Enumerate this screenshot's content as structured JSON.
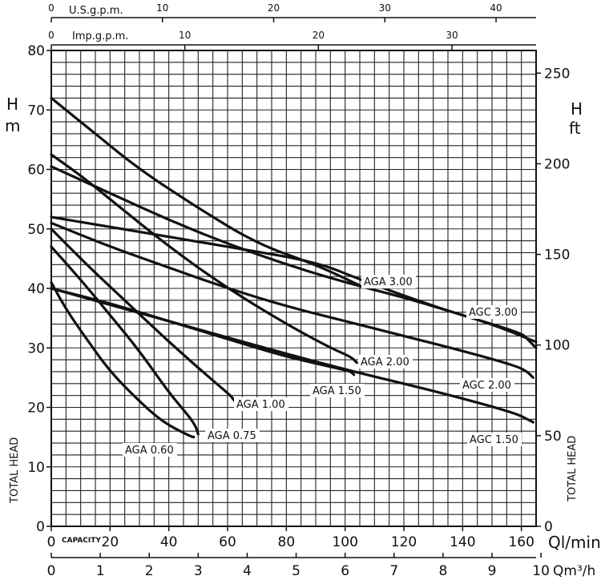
{
  "chart_data": {
    "type": "line",
    "title": "",
    "axes": {
      "left": {
        "symbol": "H",
        "unit": "m",
        "name": "TOTAL HEAD",
        "range": [
          0,
          80
        ],
        "ticks": [
          "0",
          "10",
          "20",
          "30",
          "40",
          "50",
          "60",
          "70",
          "80"
        ]
      },
      "right": {
        "symbol": "H",
        "unit": "ft",
        "name": "TOTAL HEAD",
        "range": [
          0,
          262.5
        ],
        "ticks": [
          "0",
          "50",
          "100",
          "150",
          "200",
          "250"
        ]
      },
      "bottom_flow": {
        "unit": "Ql/min",
        "name": "CAPACITY",
        "range": [
          0,
          165
        ],
        "ticks": [
          "0",
          "20",
          "40",
          "60",
          "80",
          "100",
          "120",
          "140",
          "160"
        ]
      },
      "bottom_m3h": {
        "unit": "Qm³/h",
        "range": [
          0,
          9.9
        ],
        "ticks": [
          "0",
          "1",
          "2",
          "3",
          "4",
          "5",
          "6",
          "7",
          "8",
          "9",
          "10"
        ]
      },
      "top_usgpm": {
        "unit": "U.S.g.p.m.",
        "range": [
          0,
          43.6
        ],
        "ticks": [
          "0",
          "10",
          "20",
          "30",
          "40"
        ]
      },
      "top_impgpm": {
        "unit": "Imp.g.p.m.",
        "range": [
          0,
          36.3
        ],
        "ticks": [
          "0",
          "10",
          "20",
          "30"
        ]
      }
    },
    "x_unit": "l/min",
    "y_unit": "m",
    "grid": true,
    "series": [
      {
        "name": "AGA 0.60",
        "x": [
          0,
          5,
          12,
          20,
          30,
          38,
          47,
          48.5
        ],
        "y": [
          41,
          36.5,
          31.5,
          26,
          21,
          17.5,
          15.2,
          15
        ]
      },
      {
        "name": "AGA 0.75",
        "x": [
          0,
          10,
          20,
          30,
          40,
          46,
          49,
          50
        ],
        "y": [
          47,
          41.5,
          35.5,
          29.5,
          22.5,
          19,
          17,
          15.5
        ]
      },
      {
        "name": "AGA 1.00",
        "x": [
          0,
          12,
          25,
          40,
          55,
          61,
          62.5
        ],
        "y": [
          50,
          44,
          38,
          31,
          24.5,
          22,
          21
        ]
      },
      {
        "name": "AGA 1.50",
        "x": [
          0,
          20,
          40,
          60,
          80,
          98,
          102,
          103
        ],
        "y": [
          40,
          37.5,
          34.5,
          31.5,
          28.5,
          26.5,
          26,
          25.5
        ]
      },
      {
        "name": "AGA 2.00",
        "x": [
          0,
          10,
          20,
          40,
          60,
          80,
          95,
          102,
          104
        ],
        "y": [
          62.5,
          59,
          55,
          47,
          40,
          34,
          30,
          28.5,
          27.5
        ]
      },
      {
        "name": "AGA 3.00",
        "x": [
          0,
          15,
          30,
          50,
          70,
          90,
          105
        ],
        "y": [
          72,
          66,
          60,
          53.5,
          47.5,
          44,
          40.5
        ]
      },
      {
        "name": "AGC 1.50",
        "x": [
          0,
          40,
          80,
          103,
          120,
          140,
          158,
          162,
          164
        ],
        "y": [
          40,
          34.5,
          29,
          26,
          24,
          21.5,
          19,
          18,
          17.5
        ]
      },
      {
        "name": "AGC 2.00",
        "x": [
          0,
          20,
          40,
          60,
          80,
          100,
          120,
          140,
          158,
          162,
          164
        ],
        "y": [
          51,
          47,
          43.5,
          40,
          37,
          34.5,
          32,
          29.5,
          27,
          26,
          25
        ]
      },
      {
        "name": "AGC 3.00",
        "x": [
          0,
          20,
          40,
          60,
          80,
          100,
          120,
          140,
          160,
          162,
          165
        ],
        "y": [
          60.5,
          56,
          51.5,
          47.5,
          44,
          41,
          38.5,
          35.5,
          32.5,
          31.5,
          30
        ]
      },
      {
        "name": "",
        "x": [
          0,
          30,
          60,
          90,
          105,
          130,
          150,
          165
        ],
        "y": [
          52,
          49.5,
          47,
          44.5,
          41.5,
          37,
          34,
          31
        ]
      }
    ],
    "labels": [
      "AGA 0.60",
      "AGA 0.75",
      "AGA 1.00",
      "AGA 1.50",
      "AGA 2.00",
      "AGA 3.00",
      "AGC 1.50",
      "AGC 2.00",
      "AGC 3.00"
    ]
  }
}
